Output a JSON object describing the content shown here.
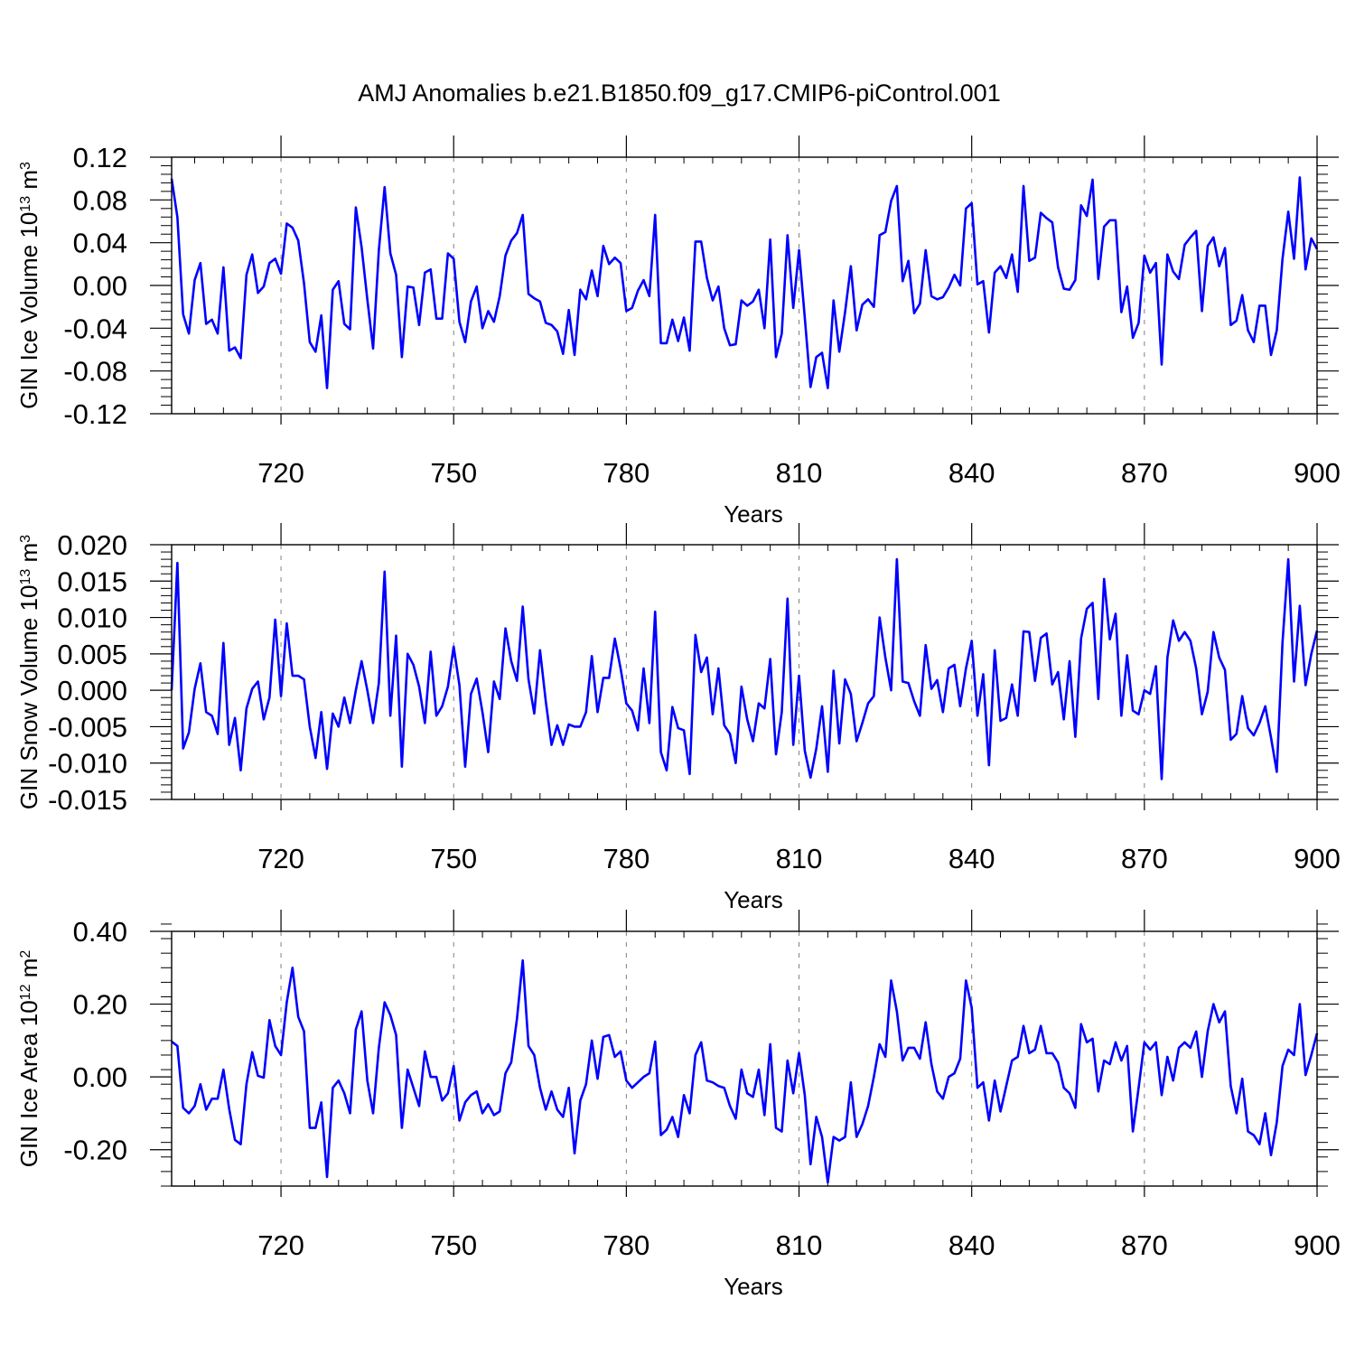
{
  "figure": {
    "title": "AMJ Anomalies b.e21.B1850.f09_g17.CMIP6-piControl.001",
    "line_color": "#0000ff",
    "grid_color": "#808080",
    "axis_color": "#000000"
  },
  "chart_data": [
    {
      "type": "line",
      "title": "AMJ Anomalies b.e21.B1850.f09_g17.CMIP6-piControl.001",
      "xlabel": "Years",
      "ylabel": {
        "main": "GIN Ice Volume 10",
        "sup1": "13",
        "mid": " m",
        "sup2": "3"
      },
      "xlim": [
        701,
        900
      ],
      "ylim": [
        -0.12,
        0.12
      ],
      "xticks": [
        720,
        750,
        780,
        810,
        840,
        870,
        900
      ],
      "yticks": [
        -0.12,
        -0.08,
        -0.04,
        0.0,
        0.04,
        0.08,
        0.12
      ],
      "ytick_labels": [
        "-0.12",
        "-0.08",
        "-0.04",
        "0.00",
        "0.04",
        "0.08",
        "0.12"
      ],
      "grid": "dashed vertical at x ticks",
      "x_start": 701,
      "series": [
        {
          "name": "GIN Ice Volume",
          "values": [
            0.1,
            0.064,
            -0.027,
            -0.045,
            0.005,
            0.021,
            -0.036,
            -0.032,
            -0.045,
            0.017,
            -0.061,
            -0.058,
            -0.068,
            0.01,
            0.029,
            -0.007,
            -0.001,
            0.021,
            0.025,
            0.011,
            0.058,
            0.054,
            0.042,
            0.002,
            -0.053,
            -0.062,
            -0.028,
            -0.096,
            -0.004,
            0.004,
            -0.036,
            -0.041,
            0.073,
            0.036,
            -0.013,
            -0.059,
            0.033,
            0.092,
            0.03,
            0.01,
            -0.067,
            -0.001,
            -0.002,
            -0.037,
            0.012,
            0.015,
            -0.031,
            -0.031,
            0.03,
            0.025,
            -0.034,
            -0.053,
            -0.015,
            -0.001,
            -0.04,
            -0.024,
            -0.034,
            -0.01,
            0.028,
            0.042,
            0.049,
            0.066,
            -0.008,
            -0.012,
            -0.015,
            -0.035,
            -0.037,
            -0.043,
            -0.064,
            -0.023,
            -0.065,
            -0.004,
            -0.013,
            0.014,
            -0.01,
            0.037,
            0.02,
            0.026,
            0.021,
            -0.024,
            -0.021,
            -0.005,
            0.005,
            -0.01,
            0.066,
            -0.054,
            -0.054,
            -0.032,
            -0.052,
            -0.03,
            -0.061,
            0.041,
            0.041,
            0.007,
            -0.014,
            -0.001,
            -0.04,
            -0.056,
            -0.055,
            -0.014,
            -0.019,
            -0.015,
            -0.004,
            -0.04,
            0.043,
            -0.067,
            -0.045,
            0.047,
            -0.021,
            0.033,
            -0.03,
            -0.095,
            -0.067,
            -0.063,
            -0.096,
            -0.014,
            -0.062,
            -0.025,
            0.018,
            -0.042,
            -0.018,
            -0.013,
            -0.02,
            0.047,
            0.05,
            0.079,
            0.093,
            0.004,
            0.023,
            -0.026,
            -0.017,
            0.033,
            -0.01,
            -0.013,
            -0.011,
            -0.002,
            0.01,
            0.0,
            0.072,
            0.077,
            0.001,
            0.004,
            -0.044,
            0.012,
            0.018,
            0.007,
            0.029,
            -0.006,
            0.093,
            0.023,
            0.026,
            0.068,
            0.063,
            0.059,
            0.017,
            -0.003,
            -0.004,
            0.005,
            0.075,
            0.065,
            0.099,
            0.006,
            0.055,
            0.061,
            0.061,
            -0.025,
            -0.001,
            -0.049,
            -0.035,
            0.028,
            0.012,
            0.021,
            -0.074,
            0.029,
            0.013,
            0.006,
            0.038,
            0.045,
            0.051,
            -0.024,
            0.037,
            0.045,
            0.018,
            0.035,
            -0.037,
            -0.033,
            -0.009,
            -0.042,
            -0.053,
            -0.019,
            -0.019,
            -0.065,
            -0.042,
            0.025,
            0.069,
            0.025,
            0.101,
            0.015,
            0.044,
            0.034
          ]
        }
      ]
    },
    {
      "type": "line",
      "xlabel": "Years",
      "ylabel": {
        "main": "GIN Snow Volume 10",
        "sup1": "13",
        "mid": " m",
        "sup2": "3"
      },
      "xlim": [
        701,
        900
      ],
      "ylim": [
        -0.015,
        0.02
      ],
      "xticks": [
        720,
        750,
        780,
        810,
        840,
        870,
        900
      ],
      "yticks": [
        -0.015,
        -0.01,
        -0.005,
        0.0,
        0.005,
        0.01,
        0.015,
        0.02
      ],
      "ytick_labels": [
        "-0.015",
        "-0.010",
        "-0.005",
        "0.000",
        "0.005",
        "0.010",
        "0.015",
        "0.020"
      ],
      "grid": "dashed vertical at x ticks",
      "x_start": 701,
      "series": [
        {
          "name": "GIN Snow Volume",
          "values": [
            0.0,
            0.0175,
            -0.008,
            -0.0058,
            0.0002,
            0.0037,
            -0.003,
            -0.0035,
            -0.006,
            0.0065,
            -0.0075,
            -0.0038,
            -0.011,
            -0.0025,
            0.0002,
            0.0012,
            -0.004,
            -0.001,
            0.0097,
            -0.0008,
            0.0092,
            0.002,
            0.002,
            0.0015,
            -0.005,
            -0.0093,
            -0.003,
            -0.0108,
            -0.0032,
            -0.005,
            -0.001,
            -0.0045,
            0.0,
            0.004,
            0.0,
            -0.0045,
            0.001,
            0.0163,
            -0.0035,
            0.0075,
            -0.0105,
            0.005,
            0.0035,
            0.0005,
            -0.0045,
            0.0053,
            -0.0035,
            -0.0022,
            0.0005,
            0.006,
            0.0007,
            -0.0105,
            -0.0005,
            0.0016,
            -0.003,
            -0.0085,
            0.0012,
            -0.0012,
            0.0085,
            0.004,
            0.0013,
            0.0115,
            0.0015,
            -0.0032,
            0.0055,
            -0.0015,
            -0.0075,
            -0.0048,
            -0.0075,
            -0.0047,
            -0.005,
            -0.005,
            -0.003,
            0.0047,
            -0.003,
            0.0017,
            0.0017,
            0.0071,
            0.003,
            -0.0018,
            -0.0028,
            -0.0055,
            0.003,
            -0.0045,
            0.0108,
            -0.0085,
            -0.011,
            -0.0023,
            -0.0052,
            -0.0055,
            -0.0115,
            0.0076,
            0.0025,
            0.0045,
            -0.0033,
            0.003,
            -0.0048,
            -0.006,
            -0.01,
            0.0005,
            -0.004,
            -0.007,
            -0.0018,
            -0.0025,
            0.0043,
            -0.0088,
            -0.003,
            0.0126,
            -0.0075,
            0.002,
            -0.0083,
            -0.012,
            -0.008,
            -0.0022,
            -0.0112,
            0.0027,
            -0.0073,
            0.0015,
            -0.0005,
            -0.007,
            -0.0045,
            -0.0018,
            -0.0008,
            0.01,
            0.0045,
            0.0,
            0.018,
            0.0012,
            0.001,
            -0.0015,
            -0.0035,
            0.0062,
            0.0002,
            0.0014,
            -0.003,
            0.003,
            0.0035,
            -0.0022,
            0.003,
            0.0068,
            -0.0035,
            0.0022,
            -0.0103,
            0.0055,
            -0.0042,
            -0.0038,
            0.0008,
            -0.0035,
            0.0081,
            0.008,
            0.0013,
            0.0072,
            0.0078,
            0.0008,
            0.0025,
            -0.004,
            0.004,
            -0.0064,
            0.0071,
            0.0112,
            0.012,
            -0.0012,
            0.0153,
            0.007,
            0.0105,
            -0.0035,
            0.0048,
            -0.0028,
            -0.0033,
            0.0,
            -0.0005,
            0.0033,
            -0.0122,
            0.0045,
            0.0096,
            0.0068,
            0.008,
            0.0068,
            0.003,
            -0.0033,
            -0.0002,
            0.008,
            0.0045,
            0.0028,
            -0.0068,
            -0.006,
            -0.0008,
            -0.0052,
            -0.0062,
            -0.0045,
            -0.0022,
            -0.0065,
            -0.0112,
            0.0066,
            0.018,
            0.0012,
            0.0116,
            0.0007,
            0.005,
            0.0082
          ]
        }
      ]
    },
    {
      "type": "line",
      "xlabel": "Years",
      "ylabel": {
        "main": "GIN Ice Area 10",
        "sup1": "12",
        "mid": " m",
        "sup2": "2"
      },
      "xlim": [
        701,
        900
      ],
      "ylim": [
        -0.3,
        0.4
      ],
      "xticks": [
        720,
        750,
        780,
        810,
        840,
        870,
        900
      ],
      "yticks": [
        -0.2,
        0.0,
        0.2,
        0.4
      ],
      "ytick_labels": [
        "-0.20",
        "0.00",
        "0.20",
        "0.40"
      ],
      "grid": "dashed vertical at x ticks",
      "x_start": 701,
      "series": [
        {
          "name": "GIN Ice Area",
          "values": [
            0.097,
            0.085,
            -0.085,
            -0.1,
            -0.08,
            -0.02,
            -0.09,
            -0.06,
            -0.06,
            0.02,
            -0.088,
            -0.173,
            -0.185,
            -0.02,
            0.068,
            0.003,
            -0.002,
            0.156,
            0.085,
            0.06,
            0.205,
            0.3,
            0.165,
            0.125,
            -0.14,
            -0.14,
            -0.07,
            -0.275,
            -0.03,
            -0.01,
            -0.045,
            -0.1,
            0.13,
            0.18,
            -0.01,
            -0.1,
            0.08,
            0.205,
            0.17,
            0.115,
            -0.14,
            0.02,
            -0.03,
            -0.08,
            0.07,
            0.0,
            0.0,
            -0.065,
            -0.045,
            0.03,
            -0.12,
            -0.07,
            -0.05,
            -0.04,
            -0.1,
            -0.075,
            -0.105,
            -0.095,
            0.01,
            0.04,
            0.16,
            0.32,
            0.085,
            0.06,
            -0.03,
            -0.09,
            -0.04,
            -0.09,
            -0.11,
            -0.03,
            -0.21,
            -0.065,
            -0.02,
            0.1,
            -0.005,
            0.11,
            0.115,
            0.055,
            0.07,
            -0.01,
            -0.03,
            -0.015,
            0.0,
            0.01,
            0.097,
            -0.16,
            -0.145,
            -0.11,
            -0.165,
            -0.05,
            -0.1,
            0.06,
            0.095,
            -0.01,
            -0.015,
            -0.025,
            -0.03,
            -0.08,
            -0.115,
            0.02,
            -0.045,
            -0.055,
            0.02,
            -0.105,
            0.09,
            -0.14,
            -0.15,
            0.045,
            -0.045,
            0.065,
            -0.05,
            -0.24,
            -0.11,
            -0.165,
            -0.29,
            -0.165,
            -0.175,
            -0.165,
            -0.015,
            -0.165,
            -0.13,
            -0.08,
            0.0,
            0.09,
            0.055,
            0.265,
            0.18,
            0.045,
            0.08,
            0.08,
            0.05,
            0.15,
            0.035,
            -0.04,
            -0.06,
            0.0,
            0.01,
            0.05,
            0.265,
            0.19,
            -0.03,
            -0.015,
            -0.12,
            -0.01,
            -0.095,
            -0.025,
            0.045,
            0.055,
            0.14,
            0.065,
            0.075,
            0.14,
            0.065,
            0.065,
            0.04,
            -0.03,
            -0.045,
            -0.085,
            0.145,
            0.095,
            0.105,
            -0.04,
            0.045,
            0.035,
            0.095,
            0.045,
            0.085,
            -0.15,
            -0.03,
            0.095,
            0.075,
            0.095,
            -0.05,
            0.055,
            -0.01,
            0.08,
            0.095,
            0.08,
            0.125,
            0.0,
            0.125,
            0.2,
            0.15,
            0.18,
            -0.025,
            -0.1,
            -0.005,
            -0.15,
            -0.16,
            -0.185,
            -0.1,
            -0.215,
            -0.125,
            0.03,
            0.075,
            0.06,
            0.2,
            0.005,
            0.06,
            0.12
          ]
        }
      ]
    }
  ]
}
